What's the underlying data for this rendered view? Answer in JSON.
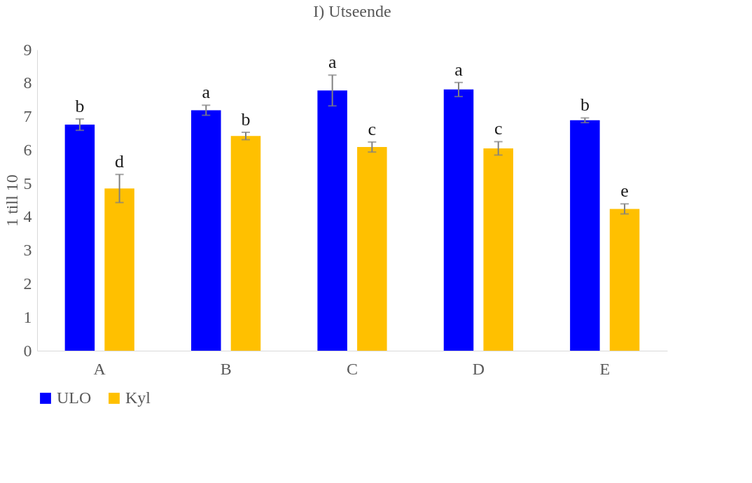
{
  "chart_data": {
    "type": "bar",
    "title": "I) Utseende",
    "ylabel": "1 till 10",
    "categories": [
      "A",
      "B",
      "C",
      "D",
      "E"
    ],
    "series": [
      {
        "name": "ULO",
        "color": "#0000ff",
        "values": [
          6.76,
          7.19,
          7.78,
          7.81,
          6.89
        ],
        "errors": [
          0.17,
          0.15,
          0.46,
          0.21,
          0.07
        ],
        "value_labels": [
          "b",
          "a",
          "a",
          "a",
          "b"
        ]
      },
      {
        "name": "Kyl",
        "color": "#ffc000",
        "values": [
          4.85,
          6.42,
          6.09,
          6.05,
          4.24
        ],
        "errors": [
          0.42,
          0.11,
          0.15,
          0.2,
          0.15
        ],
        "value_labels": [
          "d",
          "b",
          "c",
          "c",
          "e"
        ]
      }
    ],
    "ylim": [
      0,
      9
    ],
    "yticks": [
      0,
      1,
      2,
      3,
      4,
      5,
      6,
      7,
      8,
      9
    ],
    "grid": false,
    "legend": "bottom"
  }
}
